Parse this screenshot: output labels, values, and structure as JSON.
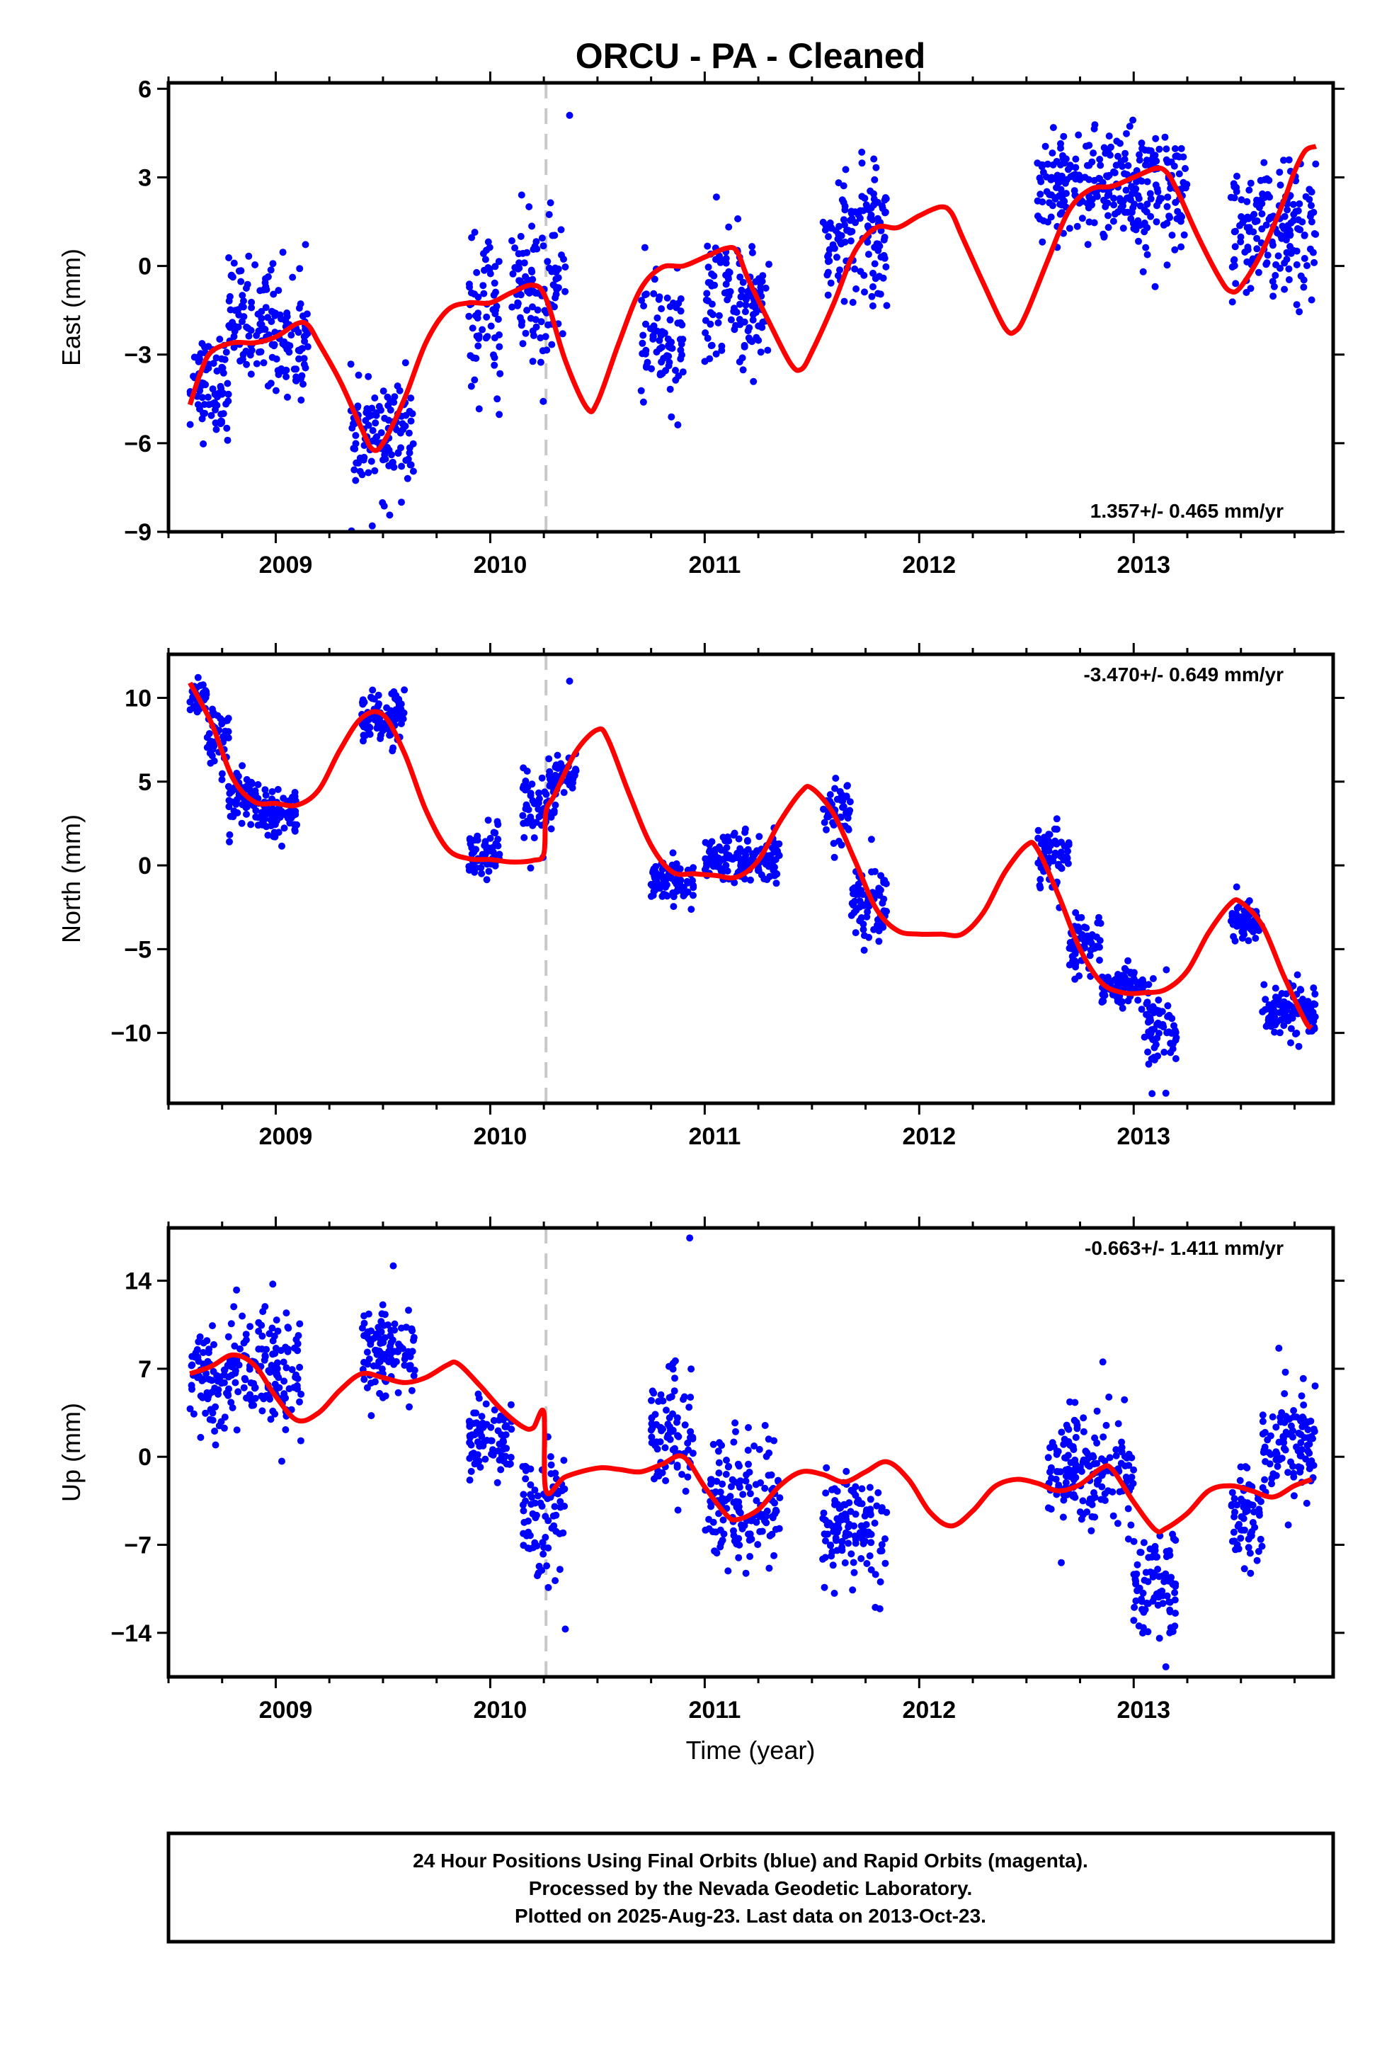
{
  "title": "ORCU  - PA - Cleaned",
  "xlabel": "Time (year)",
  "footer": {
    "line1": "24 Hour Positions Using Final Orbits (blue) and Rapid Orbits (magenta).",
    "line2": "Processed by the Nevada Geodetic Laboratory.",
    "line3": "Plotted on 2025-Aug-23. Last data on 2013-Oct-23."
  },
  "colors": {
    "final_orbits": "#0000ff",
    "model": "#ff0000",
    "equipment_change": "#c8c8c8",
    "axes": "#000000"
  },
  "chart_data": [
    {
      "type": "scatter",
      "ylabel": "East (mm)",
      "rate_label": "1.357+/- 0.465 mm/yr",
      "xlim": [
        2008.5,
        2013.93
      ],
      "ylim": [
        -9,
        6.2
      ],
      "yticks": [
        -9,
        -6,
        -3,
        0,
        3,
        6
      ],
      "xticks": [
        2009,
        2010,
        2011,
        2012,
        2013
      ],
      "equipment_change": 2010.26,
      "model": [
        [
          2008.6,
          -4.7
        ],
        [
          2008.65,
          -3.6
        ],
        [
          2008.7,
          -2.9
        ],
        [
          2008.8,
          -2.6
        ],
        [
          2008.9,
          -2.6
        ],
        [
          2009.0,
          -2.4
        ],
        [
          2009.1,
          -1.95
        ],
        [
          2009.15,
          -2.0
        ],
        [
          2009.2,
          -2.6
        ],
        [
          2009.3,
          -3.9
        ],
        [
          2009.4,
          -5.5
        ],
        [
          2009.45,
          -6.2
        ],
        [
          2009.5,
          -6.0
        ],
        [
          2009.6,
          -4.5
        ],
        [
          2009.7,
          -2.6
        ],
        [
          2009.8,
          -1.5
        ],
        [
          2009.9,
          -1.25
        ],
        [
          2010.0,
          -1.25
        ],
        [
          2010.1,
          -0.9
        ],
        [
          2010.2,
          -0.65
        ],
        [
          2010.26,
          -1.1
        ],
        [
          2010.35,
          -3.2
        ],
        [
          2010.45,
          -4.8
        ],
        [
          2010.5,
          -4.6
        ],
        [
          2010.6,
          -2.6
        ],
        [
          2010.7,
          -0.8
        ],
        [
          2010.8,
          -0.05
        ],
        [
          2010.9,
          0.0
        ],
        [
          2011.0,
          0.3
        ],
        [
          2011.1,
          0.6
        ],
        [
          2011.15,
          0.5
        ],
        [
          2011.2,
          -0.4
        ],
        [
          2011.3,
          -1.9
        ],
        [
          2011.4,
          -3.3
        ],
        [
          2011.45,
          -3.5
        ],
        [
          2011.5,
          -2.9
        ],
        [
          2011.6,
          -1.3
        ],
        [
          2011.7,
          0.5
        ],
        [
          2011.8,
          1.3
        ],
        [
          2011.9,
          1.3
        ],
        [
          2012.0,
          1.7
        ],
        [
          2012.1,
          2.0
        ],
        [
          2012.15,
          1.8
        ],
        [
          2012.2,
          1.0
        ],
        [
          2012.3,
          -0.6
        ],
        [
          2012.4,
          -2.1
        ],
        [
          2012.45,
          -2.2
        ],
        [
          2012.5,
          -1.6
        ],
        [
          2012.6,
          0.2
        ],
        [
          2012.7,
          1.9
        ],
        [
          2012.8,
          2.6
        ],
        [
          2012.9,
          2.7
        ],
        [
          2013.0,
          3.0
        ],
        [
          2013.1,
          3.3
        ],
        [
          2013.15,
          3.2
        ],
        [
          2013.2,
          2.6
        ],
        [
          2013.3,
          1.0
        ],
        [
          2013.4,
          -0.4
        ],
        [
          2013.45,
          -0.85
        ],
        [
          2013.5,
          -0.7
        ],
        [
          2013.6,
          0.5
        ],
        [
          2013.7,
          2.2
        ],
        [
          2013.75,
          3.2
        ],
        [
          2013.8,
          3.9
        ],
        [
          2013.85,
          4.05
        ]
      ],
      "scatter_clusters": [
        [
          2008.6,
          2008.78,
          -4.0,
          1.2
        ],
        [
          2008.78,
          2009.0,
          -1.8,
          1.4
        ],
        [
          2009.0,
          2009.15,
          -2.5,
          1.6
        ],
        [
          2009.35,
          2009.65,
          -5.8,
          1.3
        ],
        [
          2009.9,
          2010.05,
          -1.8,
          1.8
        ],
        [
          2010.1,
          2010.35,
          -0.8,
          1.9
        ],
        [
          2010.7,
          2010.9,
          -2.6,
          1.5
        ],
        [
          2011.0,
          2011.3,
          -1.2,
          1.6
        ],
        [
          2011.55,
          2011.85,
          1.0,
          1.6
        ],
        [
          2012.55,
          2013.25,
          2.6,
          1.4
        ],
        [
          2013.45,
          2013.85,
          1.2,
          1.5
        ]
      ],
      "outliers": [
        [
          2010.37,
          5.1
        ],
        [
          2009.45,
          -8.8
        ],
        [
          2013.1,
          -0.7
        ]
      ]
    },
    {
      "type": "scatter",
      "ylabel": "North (mm)",
      "rate_label": "-3.470+/- 0.649 mm/yr",
      "xlim": [
        2008.5,
        2013.93
      ],
      "ylim": [
        -14.2,
        12.6
      ],
      "yticks": [
        -10,
        -5,
        0,
        5,
        10
      ],
      "xticks": [
        2009,
        2010,
        2011,
        2012,
        2013
      ],
      "equipment_change": 2010.26,
      "model": [
        [
          2008.6,
          10.9
        ],
        [
          2008.7,
          8.5
        ],
        [
          2008.8,
          5.2
        ],
        [
          2008.9,
          3.8
        ],
        [
          2009.0,
          3.7
        ],
        [
          2009.1,
          3.6
        ],
        [
          2009.2,
          4.5
        ],
        [
          2009.3,
          6.9
        ],
        [
          2009.4,
          8.8
        ],
        [
          2009.5,
          9.0
        ],
        [
          2009.6,
          6.7
        ],
        [
          2009.7,
          3.3
        ],
        [
          2009.8,
          1.0
        ],
        [
          2009.9,
          0.4
        ],
        [
          2010.0,
          0.35
        ],
        [
          2010.1,
          0.2
        ],
        [
          2010.2,
          0.3
        ],
        [
          2010.25,
          0.7
        ],
        [
          2010.26,
          3.2
        ],
        [
          2010.3,
          4.2
        ],
        [
          2010.4,
          6.8
        ],
        [
          2010.5,
          8.1
        ],
        [
          2010.55,
          7.5
        ],
        [
          2010.65,
          4.2
        ],
        [
          2010.75,
          1.2
        ],
        [
          2010.85,
          -0.4
        ],
        [
          2010.95,
          -0.5
        ],
        [
          2011.05,
          -0.6
        ],
        [
          2011.15,
          -0.7
        ],
        [
          2011.25,
          0.3
        ],
        [
          2011.35,
          2.6
        ],
        [
          2011.45,
          4.4
        ],
        [
          2011.5,
          4.6
        ],
        [
          2011.6,
          3.1
        ],
        [
          2011.7,
          0.3
        ],
        [
          2011.8,
          -2.6
        ],
        [
          2011.9,
          -3.9
        ],
        [
          2012.0,
          -4.1
        ],
        [
          2012.1,
          -4.1
        ],
        [
          2012.2,
          -4.1
        ],
        [
          2012.3,
          -2.8
        ],
        [
          2012.4,
          -0.4
        ],
        [
          2012.5,
          1.2
        ],
        [
          2012.55,
          1.0
        ],
        [
          2012.65,
          -1.8
        ],
        [
          2012.75,
          -5.0
        ],
        [
          2012.85,
          -7.0
        ],
        [
          2012.95,
          -7.6
        ],
        [
          2013.05,
          -7.6
        ],
        [
          2013.15,
          -7.4
        ],
        [
          2013.25,
          -6.3
        ],
        [
          2013.35,
          -4.0
        ],
        [
          2013.45,
          -2.3
        ],
        [
          2013.5,
          -2.2
        ],
        [
          2013.6,
          -3.6
        ],
        [
          2013.7,
          -6.6
        ],
        [
          2013.8,
          -9.3
        ],
        [
          2013.83,
          -9.7
        ]
      ],
      "scatter_clusters": [
        [
          2008.6,
          2008.68,
          9.8,
          0.9
        ],
        [
          2008.68,
          2008.78,
          7.5,
          1.3
        ],
        [
          2008.78,
          2008.9,
          4.2,
          1.2
        ],
        [
          2008.9,
          2009.1,
          3.2,
          1.0
        ],
        [
          2009.4,
          2009.6,
          8.8,
          1.2
        ],
        [
          2009.9,
          2010.05,
          0.8,
          1.0
        ],
        [
          2010.15,
          2010.3,
          3.3,
          2.0
        ],
        [
          2010.3,
          2010.4,
          5.3,
          1.0
        ],
        [
          2010.75,
          2010.95,
          -1.0,
          1.0
        ],
        [
          2011.0,
          2011.35,
          0.3,
          1.1
        ],
        [
          2011.55,
          2011.68,
          3.0,
          1.2
        ],
        [
          2011.68,
          2011.85,
          -2.4,
          1.8
        ],
        [
          2012.55,
          2012.7,
          0.5,
          1.3
        ],
        [
          2012.7,
          2012.85,
          -4.6,
          1.2
        ],
        [
          2012.85,
          2013.05,
          -7.1,
          0.8
        ],
        [
          2013.05,
          2013.2,
          -9.6,
          1.7
        ],
        [
          2013.45,
          2013.6,
          -3.2,
          1.0
        ],
        [
          2013.6,
          2013.85,
          -8.7,
          1.3
        ]
      ],
      "outliers": [
        [
          2010.37,
          11.0
        ],
        [
          2013.15,
          -13.6
        ]
      ]
    },
    {
      "type": "scatter",
      "ylabel": "Up (mm)",
      "rate_label": "-0.663+/- 1.411 mm/yr",
      "xlim": [
        2008.5,
        2013.93
      ],
      "ylim": [
        -17.5,
        18.2
      ],
      "yticks": [
        -14,
        -7,
        0,
        7,
        14
      ],
      "xticks": [
        2009,
        2010,
        2011,
        2012,
        2013
      ],
      "equipment_change": 2010.26,
      "model": [
        [
          2008.6,
          6.6
        ],
        [
          2008.7,
          7.2
        ],
        [
          2008.8,
          8.1
        ],
        [
          2008.9,
          7.3
        ],
        [
          2009.0,
          4.8
        ],
        [
          2009.1,
          2.9
        ],
        [
          2009.2,
          3.5
        ],
        [
          2009.3,
          5.3
        ],
        [
          2009.4,
          6.6
        ],
        [
          2009.5,
          6.3
        ],
        [
          2009.6,
          5.9
        ],
        [
          2009.7,
          6.3
        ],
        [
          2009.8,
          7.3
        ],
        [
          2009.85,
          7.4
        ],
        [
          2009.95,
          5.7
        ],
        [
          2010.05,
          3.8
        ],
        [
          2010.15,
          2.4
        ],
        [
          2010.2,
          2.3
        ],
        [
          2010.25,
          3.5
        ],
        [
          2010.26,
          -2.7
        ],
        [
          2010.35,
          -1.6
        ],
        [
          2010.5,
          -0.9
        ],
        [
          2010.6,
          -1.0
        ],
        [
          2010.7,
          -1.2
        ],
        [
          2010.8,
          -0.6
        ],
        [
          2010.9,
          0.0
        ],
        [
          2011.0,
          -2.4
        ],
        [
          2011.1,
          -4.6
        ],
        [
          2011.15,
          -5.0
        ],
        [
          2011.25,
          -4.2
        ],
        [
          2011.35,
          -2.3
        ],
        [
          2011.45,
          -1.2
        ],
        [
          2011.55,
          -1.4
        ],
        [
          2011.65,
          -2.0
        ],
        [
          2011.75,
          -1.2
        ],
        [
          2011.85,
          -0.4
        ],
        [
          2011.95,
          -1.8
        ],
        [
          2012.05,
          -4.4
        ],
        [
          2012.15,
          -5.5
        ],
        [
          2012.25,
          -4.3
        ],
        [
          2012.35,
          -2.4
        ],
        [
          2012.45,
          -1.8
        ],
        [
          2012.55,
          -2.1
        ],
        [
          2012.65,
          -2.7
        ],
        [
          2012.75,
          -2.2
        ],
        [
          2012.85,
          -0.9
        ],
        [
          2012.9,
          -1.0
        ],
        [
          2013.0,
          -3.6
        ],
        [
          2013.1,
          -5.8
        ],
        [
          2013.15,
          -5.7
        ],
        [
          2013.25,
          -4.5
        ],
        [
          2013.35,
          -2.7
        ],
        [
          2013.45,
          -2.3
        ],
        [
          2013.55,
          -2.7
        ],
        [
          2013.65,
          -3.2
        ],
        [
          2013.75,
          -2.3
        ],
        [
          2013.83,
          -1.8
        ]
      ],
      "scatter_clusters": [
        [
          2008.6,
          2008.78,
          6.0,
          2.4
        ],
        [
          2008.78,
          2009.0,
          7.3,
          3.5
        ],
        [
          2009.0,
          2009.12,
          6.5,
          3.5
        ],
        [
          2009.4,
          2009.65,
          8.2,
          2.8
        ],
        [
          2009.9,
          2010.1,
          1.5,
          2.2
        ],
        [
          2010.15,
          2010.35,
          -4.5,
          3.5
        ],
        [
          2010.75,
          2010.95,
          1.8,
          3.5
        ],
        [
          2011.0,
          2011.35,
          -3.8,
          4.0
        ],
        [
          2011.55,
          2011.85,
          -5.6,
          3.0
        ],
        [
          2012.6,
          2013.0,
          -1.2,
          3.3
        ],
        [
          2013.0,
          2013.2,
          -10.2,
          3.0
        ],
        [
          2013.45,
          2013.6,
          -4.6,
          2.6
        ],
        [
          2013.6,
          2013.85,
          1.0,
          3.3
        ]
      ],
      "outliers": [
        [
          2010.93,
          17.4
        ],
        [
          2010.35,
          -13.7
        ],
        [
          2013.15,
          -16.7
        ]
      ]
    }
  ]
}
